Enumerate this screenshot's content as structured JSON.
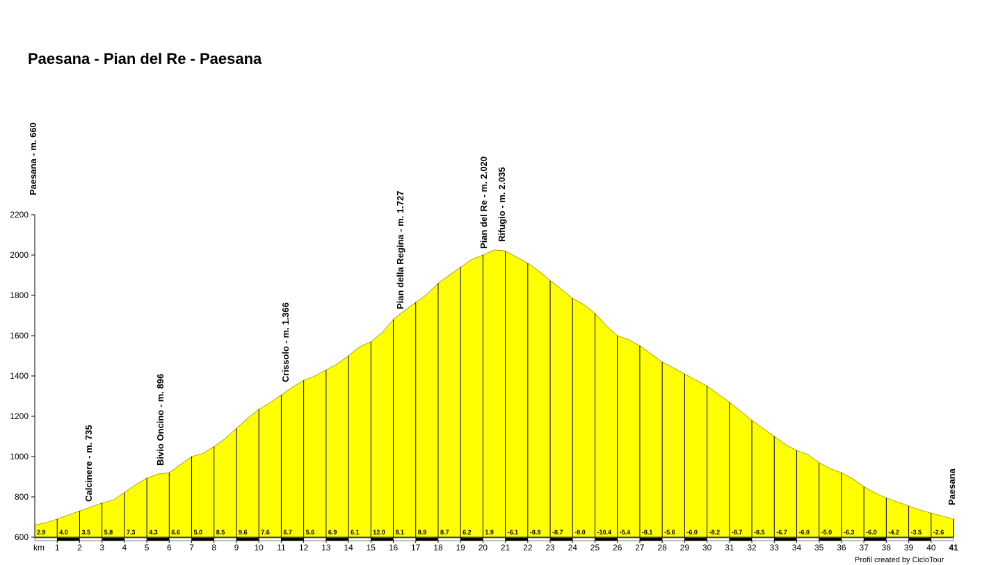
{
  "chart_data": {
    "type": "area",
    "title": "Paesana - Pian del Re - Paesana",
    "xlabel": "km",
    "ylabel": "",
    "xlim": [
      0,
      41
    ],
    "ylim": [
      600,
      2200
    ],
    "yticks": [
      600,
      800,
      1000,
      1200,
      1400,
      1600,
      1800,
      2000,
      2200
    ],
    "xticks": [
      1,
      2,
      3,
      4,
      5,
      6,
      7,
      8,
      9,
      10,
      11,
      12,
      13,
      14,
      15,
      16,
      17,
      18,
      19,
      20,
      21,
      22,
      23,
      24,
      25,
      26,
      27,
      28,
      29,
      30,
      31,
      32,
      33,
      34,
      35,
      36,
      37,
      38,
      39,
      40
    ],
    "xend_label": "41",
    "fill_color": "#ffff00",
    "grid": false,
    "profile": {
      "x": [
        0,
        0.5,
        1,
        1.5,
        2,
        2.5,
        3,
        3.5,
        4,
        4.5,
        5,
        5.5,
        6,
        6.5,
        7,
        7.5,
        8,
        8.5,
        9,
        9.5,
        10,
        10.5,
        11,
        11.5,
        12,
        12.5,
        13,
        13.5,
        14,
        14.5,
        15,
        15.5,
        16,
        16.5,
        17,
        17.5,
        18,
        18.5,
        19,
        19.5,
        20,
        20.5,
        21,
        21.5,
        22,
        22.5,
        23,
        23.5,
        24,
        24.5,
        25,
        25.5,
        26,
        26.5,
        27,
        27.5,
        28,
        28.5,
        29,
        29.5,
        30,
        30.5,
        31,
        31.5,
        32,
        32.5,
        33,
        33.5,
        34,
        34.5,
        35,
        35.5,
        36,
        36.5,
        37,
        37.5,
        38,
        38.5,
        39,
        39.5,
        40,
        40.5,
        41
      ],
      "y": [
        660,
        672,
        690,
        710,
        730,
        750,
        770,
        785,
        822,
        860,
        893,
        913,
        920,
        960,
        1000,
        1015,
        1050,
        1090,
        1140,
        1190,
        1235,
        1268,
        1305,
        1345,
        1378,
        1400,
        1430,
        1460,
        1500,
        1545,
        1570,
        1615,
        1680,
        1725,
        1765,
        1805,
        1860,
        1900,
        1940,
        1978,
        2000,
        2025,
        2020,
        1990,
        1960,
        1920,
        1873,
        1830,
        1785,
        1755,
        1710,
        1650,
        1600,
        1580,
        1550,
        1510,
        1470,
        1440,
        1410,
        1380,
        1350,
        1310,
        1270,
        1225,
        1180,
        1140,
        1100,
        1060,
        1030,
        1010,
        970,
        940,
        920,
        890,
        850,
        820,
        795,
        775,
        755,
        735,
        720,
        705,
        690
      ]
    },
    "segments": [
      {
        "km": 1,
        "gradient": "2.9"
      },
      {
        "km": 2,
        "gradient": "4.0"
      },
      {
        "km": 3,
        "gradient": "3.5"
      },
      {
        "km": 4,
        "gradient": "5.8"
      },
      {
        "km": 5,
        "gradient": "7.3"
      },
      {
        "km": 6,
        "gradient": "4.3"
      },
      {
        "km": 7,
        "gradient": "6.6"
      },
      {
        "km": 8,
        "gradient": "5.0"
      },
      {
        "km": 9,
        "gradient": "8.5"
      },
      {
        "km": 10,
        "gradient": "9.6"
      },
      {
        "km": 11,
        "gradient": "7.6"
      },
      {
        "km": 12,
        "gradient": "6.7"
      },
      {
        "km": 13,
        "gradient": "5.6"
      },
      {
        "km": 14,
        "gradient": "6.9"
      },
      {
        "km": 15,
        "gradient": "6.1"
      },
      {
        "km": 16,
        "gradient": "12.0"
      },
      {
        "km": 17,
        "gradient": "8.1"
      },
      {
        "km": 18,
        "gradient": "8.9"
      },
      {
        "km": 19,
        "gradient": "8.7"
      },
      {
        "km": 20,
        "gradient": "6.2"
      },
      {
        "km": 21,
        "gradient": "1.9"
      },
      {
        "km": 22,
        "gradient": "-6.1"
      },
      {
        "km": 23,
        "gradient": "-8.9"
      },
      {
        "km": 24,
        "gradient": "-8.7"
      },
      {
        "km": 25,
        "gradient": "-8.0"
      },
      {
        "km": 26,
        "gradient": "-10.4"
      },
      {
        "km": 27,
        "gradient": "-5.4"
      },
      {
        "km": 28,
        "gradient": "-8.1"
      },
      {
        "km": 29,
        "gradient": "-5.6"
      },
      {
        "km": 30,
        "gradient": "-6.0"
      },
      {
        "km": 31,
        "gradient": "-8.2"
      },
      {
        "km": 32,
        "gradient": "-8.7"
      },
      {
        "km": 33,
        "gradient": "-8.5"
      },
      {
        "km": 34,
        "gradient": "-6.7"
      },
      {
        "km": 35,
        "gradient": "-6.0"
      },
      {
        "km": 36,
        "gradient": "-5.0"
      },
      {
        "km": 37,
        "gradient": "-6.3"
      },
      {
        "km": 38,
        "gradient": "-6.0"
      },
      {
        "km": 39,
        "gradient": "-4.2"
      },
      {
        "km": 40,
        "gradient": "-3.5"
      },
      {
        "km": 41,
        "gradient": "-2.6"
      }
    ],
    "annotations": [
      {
        "text": "Paesana - m. 660",
        "km": 0,
        "altitude": 660
      },
      {
        "text": "Calcinere - m. 735",
        "km": 2.2,
        "altitude": 735
      },
      {
        "text": "Bivio Oncino - m. 896",
        "km": 5.8,
        "altitude": 896
      },
      {
        "text": "Crissolo - m. 1.366",
        "km": 11.3,
        "altitude": 1366
      },
      {
        "text": "Pian della Regina - m. 1.727",
        "km": 16.3,
        "altitude": 1727
      },
      {
        "text": "Pian del Re - m. 2.020",
        "km": 20.1,
        "altitude": 2020
      },
      {
        "text": "Rifugio - m. 2.035",
        "km": 20.9,
        "altitude": 2035
      },
      {
        "text": "Paesana",
        "km": 41,
        "altitude": 690
      }
    ]
  },
  "footer": {
    "credit": "Profil created by CicloTour"
  }
}
